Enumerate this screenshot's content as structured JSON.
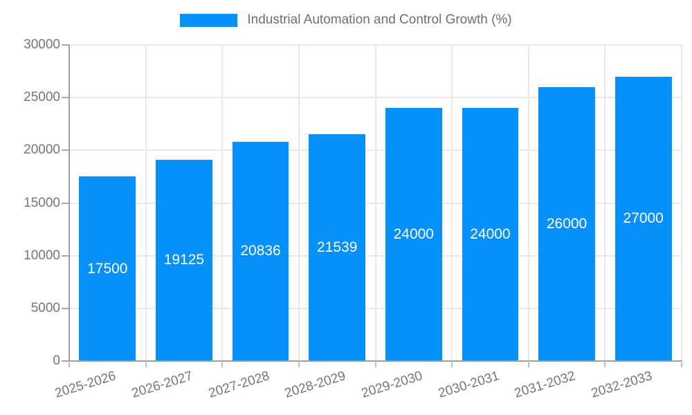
{
  "chart_data": {
    "type": "bar",
    "title": "Industrial Automation and Control Growth (%)",
    "categories": [
      "2025-2026",
      "2026-2027",
      "2027-2028",
      "2028-2029",
      "2029-2030",
      "2030-2031",
      "2031-2032",
      "2032-2033"
    ],
    "values": [
      17500,
      19125,
      20836,
      21539,
      24000,
      24000,
      26000,
      27000
    ],
    "xlabel": "",
    "ylabel": "",
    "ylim": [
      0,
      30000
    ],
    "yticks": [
      0,
      5000,
      10000,
      15000,
      20000,
      25000,
      30000
    ],
    "grid": true,
    "legend_position": "top",
    "colors": {
      "bar": "#0690f9",
      "bar_value_text": "#ffffff",
      "axis_text": "#757575",
      "legend_text": "#6e6e6e",
      "gridline": "#e7e7e7",
      "axis_line": "#9e9e9e"
    }
  }
}
